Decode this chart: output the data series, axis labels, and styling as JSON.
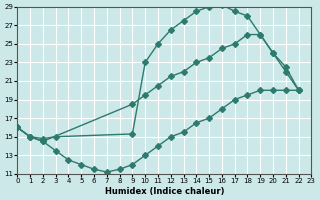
{
  "xlabel": "Humidex (Indice chaleur)",
  "ylabel": "",
  "bg_color": "#cce8e8",
  "grid_color": "#ffffff",
  "line_color": "#2d7a6e",
  "line1_x": [
    0,
    1,
    2,
    3,
    4,
    5,
    6,
    7,
    8,
    9,
    10,
    11,
    12,
    13,
    14,
    15,
    16,
    17,
    18,
    19,
    20,
    21,
    22
  ],
  "line1_y": [
    16,
    15,
    14.5,
    13.5,
    12.5,
    12,
    11.5,
    11.2,
    11.5,
    12,
    13,
    14,
    15,
    15.5,
    16.5,
    17,
    18,
    19,
    19.5,
    20,
    20,
    20,
    20
  ],
  "line2_x": [
    0,
    1,
    2,
    3,
    9,
    10,
    11,
    12,
    13,
    14,
    15,
    16,
    17,
    18,
    19,
    20,
    21,
    22
  ],
  "line2_y": [
    16,
    15,
    14.8,
    15,
    15.3,
    23,
    25,
    26.5,
    27.5,
    28.5,
    29,
    29.2,
    28.5,
    28,
    26,
    24,
    22.5,
    20
  ],
  "line3_x": [
    0,
    1,
    2,
    9,
    10,
    11,
    12,
    13,
    14,
    15,
    16,
    17,
    18,
    19,
    20,
    21,
    22
  ],
  "line3_y": [
    16,
    15,
    14.5,
    18.5,
    19.5,
    20.5,
    21.5,
    22,
    23,
    23.5,
    24.5,
    25,
    26,
    26,
    24,
    22,
    20
  ],
  "xlim": [
    0,
    23
  ],
  "ylim": [
    11,
    29
  ],
  "xticks": [
    0,
    1,
    2,
    3,
    4,
    5,
    6,
    7,
    8,
    9,
    10,
    11,
    12,
    13,
    14,
    15,
    16,
    17,
    18,
    19,
    20,
    21,
    22,
    23
  ],
  "yticks": [
    11,
    13,
    15,
    17,
    19,
    21,
    23,
    25,
    27,
    29
  ]
}
